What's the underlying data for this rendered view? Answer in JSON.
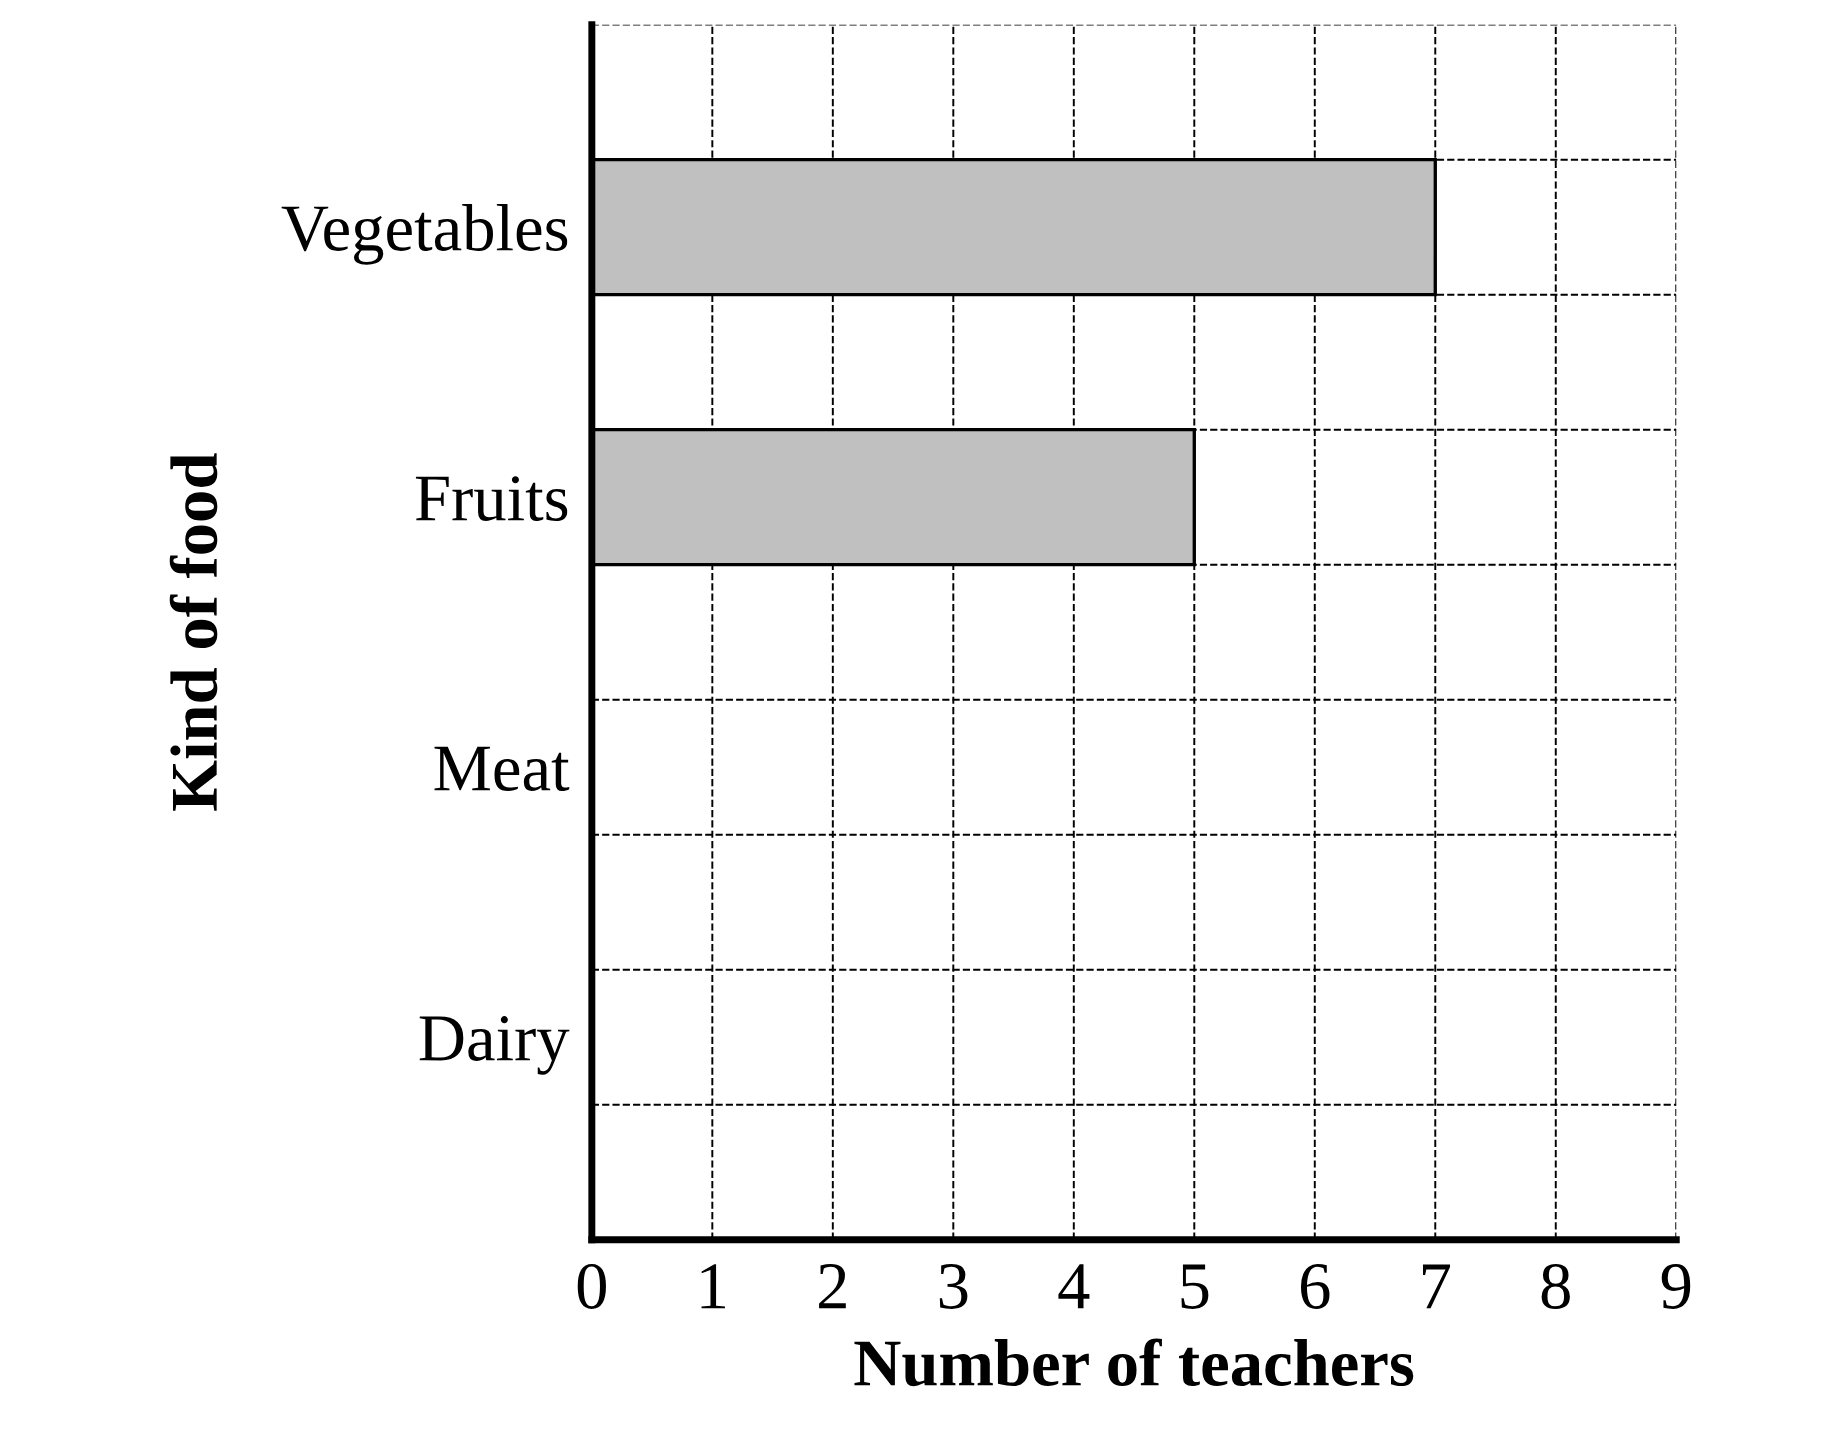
{
  "chart_data": {
    "type": "bar",
    "orientation": "horizontal",
    "categories": [
      "Vegetables",
      "Fruits",
      "Meat",
      "Dairy"
    ],
    "values": [
      7,
      5,
      null,
      null
    ],
    "color": "#c0c0c0",
    "xlabel": "Number of teachers",
    "ylabel": "Kind of food",
    "xlim": [
      0,
      9
    ],
    "xticks": [
      0,
      1,
      2,
      3,
      4,
      5,
      6,
      7,
      8,
      9
    ],
    "grid": true,
    "line_style": "dashed",
    "legend": false
  }
}
